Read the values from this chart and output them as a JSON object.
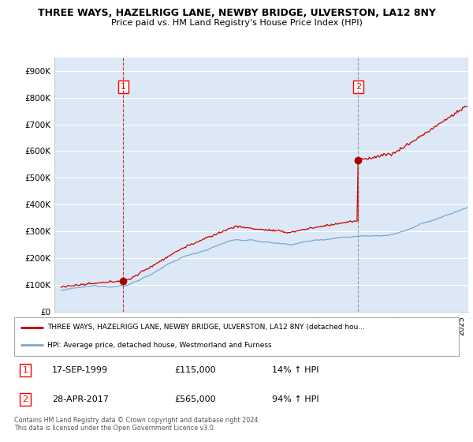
{
  "title_line1": "THREE WAYS, HAZELRIGG LANE, NEWBY BRIDGE, ULVERSTON, LA12 8NY",
  "title_line2": "Price paid vs. HM Land Registry's House Price Index (HPI)",
  "background_color": "#ffffff",
  "plot_bg_color": "#dce8f5",
  "grid_color": "#ffffff",
  "sale1_price": 115000,
  "sale1_label": "17-SEP-1999",
  "sale1_hpi_pct": "14% ↑ HPI",
  "sale2_price": 565000,
  "sale2_label": "28-APR-2017",
  "sale2_hpi_pct": "94% ↑ HPI",
  "property_line_color": "#cc0000",
  "hpi_line_color": "#7aa8d0",
  "marker_color": "#aa0000",
  "vline1_color": "#cc0000",
  "vline2_color": "#888888",
  "ylim_min": 0,
  "ylim_max": 950000,
  "yticks": [
    0,
    100000,
    200000,
    300000,
    400000,
    500000,
    600000,
    700000,
    800000,
    900000
  ],
  "ytick_labels": [
    "£0",
    "£100K",
    "£200K",
    "£300K",
    "£400K",
    "£500K",
    "£600K",
    "£700K",
    "£800K",
    "£900K"
  ],
  "xmin": 1994.5,
  "xmax": 2025.5,
  "legend_label_property": "THREE WAYS, HAZELRIGG LANE, NEWBY BRIDGE, ULVERSTON, LA12 8NY (detached hou...",
  "legend_label_hpi": "HPI: Average price, detached house, Westmorland and Furness",
  "footer_text": "Contains HM Land Registry data © Crown copyright and database right 2024.\nThis data is licensed under the Open Government Licence v3.0."
}
